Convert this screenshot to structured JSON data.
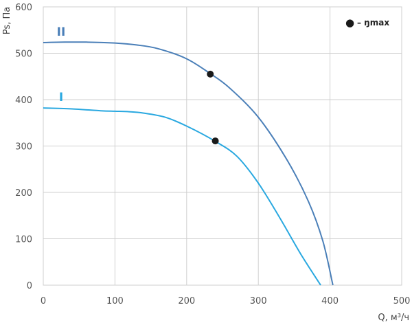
{
  "chart_data": {
    "type": "line",
    "xlabel": "Q, м³/ч",
    "ylabel": "Ps, Па",
    "xlim": [
      0,
      500
    ],
    "ylim": [
      0,
      600
    ],
    "x_ticks": [
      0,
      100,
      200,
      300,
      400,
      500
    ],
    "y_ticks": [
      0,
      100,
      200,
      300,
      400,
      500,
      600
    ],
    "grid": true,
    "legend": {
      "position": "top-right",
      "marker": "●",
      "text": "– ŋmax"
    },
    "series": [
      {
        "name": "II",
        "color": "#4a7fb8",
        "points": [
          [
            0,
            523
          ],
          [
            30,
            524
          ],
          [
            60,
            524
          ],
          [
            100,
            522
          ],
          [
            130,
            518
          ],
          [
            160,
            510
          ],
          [
            200,
            488
          ],
          [
            233,
            456
          ],
          [
            260,
            425
          ],
          [
            300,
            362
          ],
          [
            340,
            270
          ],
          [
            370,
            180
          ],
          [
            390,
            95
          ],
          [
            404,
            0
          ]
        ],
        "eta_max": [
          233,
          455
        ]
      },
      {
        "name": "I",
        "color": "#29a8e0",
        "points": [
          [
            0,
            382
          ],
          [
            40,
            380
          ],
          [
            80,
            376
          ],
          [
            100,
            375
          ],
          [
            120,
            374
          ],
          [
            140,
            371
          ],
          [
            170,
            362
          ],
          [
            200,
            343
          ],
          [
            240,
            310
          ],
          [
            270,
            278
          ],
          [
            300,
            220
          ],
          [
            330,
            145
          ],
          [
            360,
            65
          ],
          [
            387,
            0
          ]
        ],
        "eta_max": [
          240,
          311
        ]
      }
    ]
  }
}
